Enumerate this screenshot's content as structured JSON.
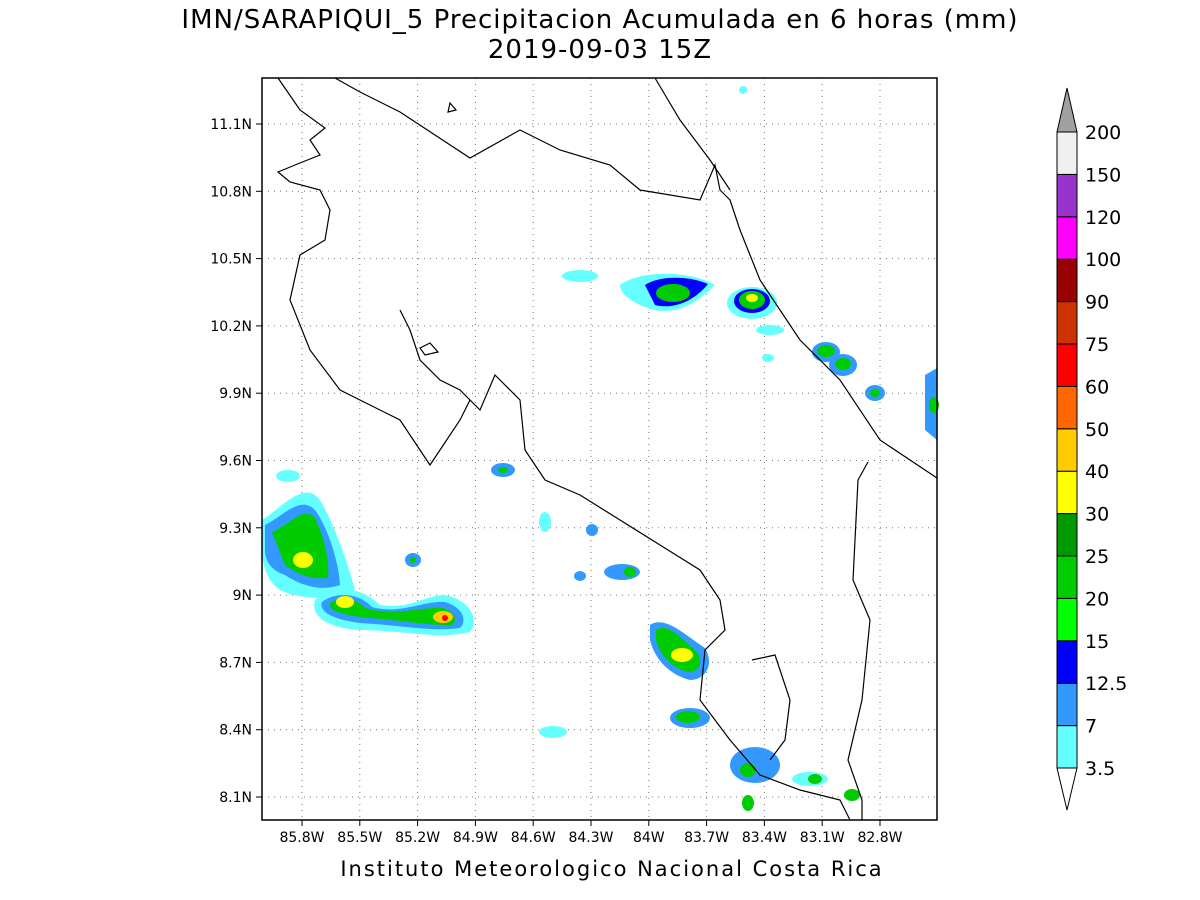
{
  "title": "IMN/SARAPIQUI_5 Precipitacion Acumulada en 6 horas (mm)",
  "subtitle": "2019-09-03 15Z",
  "map": {
    "lat_labels": [
      "11.1N",
      "10.8N",
      "10.5N",
      "10.2N",
      "9.9N",
      "9.6N",
      "9.3N",
      "9N",
      "8.7N",
      "8.4N",
      "8.1N"
    ],
    "lon_labels": [
      "85.8W",
      "85.5W",
      "85.2W",
      "84.9W",
      "84.6W",
      "84.3W",
      "84W",
      "83.7W",
      "83.4W",
      "83.1W",
      "82.8W"
    ]
  },
  "colorbar": {
    "levels": [
      3.5,
      7,
      12.5,
      15,
      20,
      25,
      30,
      40,
      50,
      60,
      75,
      90,
      100,
      120,
      150,
      200
    ],
    "colors": [
      "#66ffff",
      "#3399ff",
      "#0000ff",
      "#00ff00",
      "#00cc00",
      "#009900",
      "#ffff00",
      "#ffcc00",
      "#ff6600",
      "#ff0000",
      "#cc3300",
      "#990000",
      "#ff00ff",
      "#9933cc",
      "#f0f0f0",
      "#a0a0a0"
    ]
  },
  "footer": "Instituto Meteorologico Nacional Costa Rica"
}
